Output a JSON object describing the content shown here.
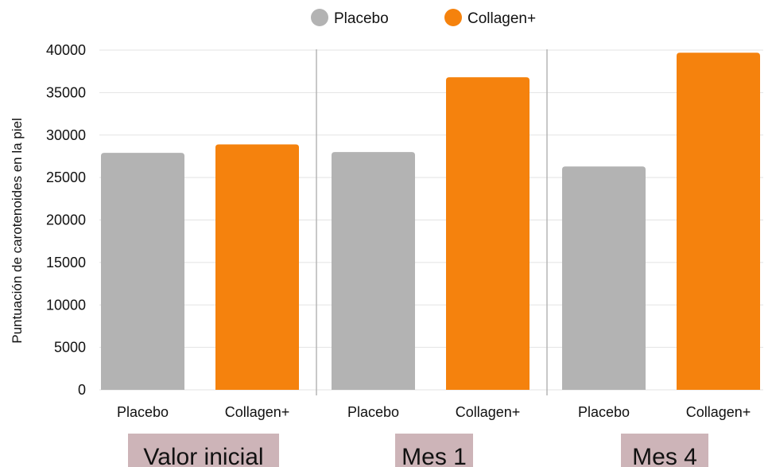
{
  "chart_data": {
    "type": "bar",
    "legend": {
      "placement": "top-center",
      "items": [
        {
          "name": "Placebo",
          "color": "#b3b3b3"
        },
        {
          "name": "Collagen+",
          "color": "#f5820d"
        }
      ]
    },
    "ylabel": "Puntuación de carotenoides en la piel",
    "xlabel": "",
    "ylim": [
      0,
      40000
    ],
    "yticks": [
      "0",
      "5000",
      "10000",
      "15000",
      "20000",
      "25000",
      "30000",
      "35000",
      "40000"
    ],
    "grid": true,
    "groups": [
      {
        "label": "Valor inicial",
        "bars": [
          {
            "category": "Placebo",
            "value": 27900,
            "series": 0
          },
          {
            "category": "Collagen+",
            "value": 28900,
            "series": 1
          }
        ]
      },
      {
        "label": "Mes 1",
        "bars": [
          {
            "category": "Placebo",
            "value": 28000,
            "series": 0
          },
          {
            "category": "Collagen+",
            "value": 36800,
            "series": 1
          }
        ]
      },
      {
        "label": "Mes 4",
        "bars": [
          {
            "category": "Placebo",
            "value": 26300,
            "series": 0
          },
          {
            "category": "Collagen+",
            "value": 39700,
            "series": 1
          }
        ]
      }
    ],
    "group_label_bg": "#cdb4b8"
  }
}
